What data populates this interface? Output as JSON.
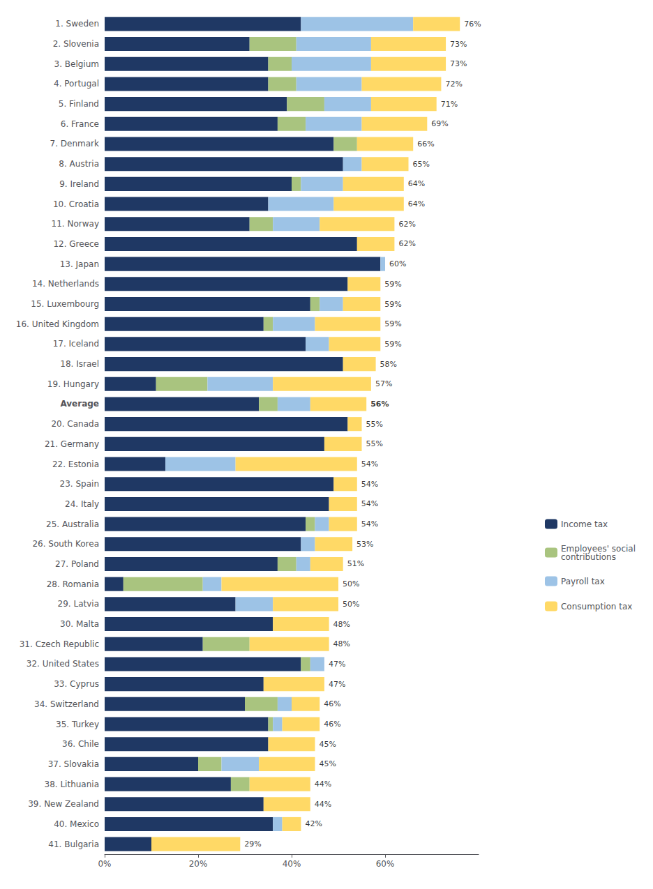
{
  "chart_data": {
    "type": "bar",
    "orientation": "horizontal",
    "stacked": true,
    "categories": [
      "1. Sweden",
      "2. Slovenia",
      "3. Belgium",
      "4. Portugal",
      "5. Finland",
      "6. France",
      "7. Denmark",
      "8. Austria",
      "9. Ireland",
      "10. Croatia",
      "11. Norway",
      "12. Greece",
      "13. Japan",
      "14. Netherlands",
      "15. Luxembourg",
      "16. United Kingdom",
      "17. Iceland",
      "18. Israel",
      "19. Hungary",
      "Average",
      "20. Canada",
      "21. Germany",
      "22. Estonia",
      "23. Spain",
      "24. Italy",
      "25. Australia",
      "26. South Korea",
      "27. Poland",
      "28. Romania",
      "29. Latvia",
      "30. Malta",
      "31. Czech Republic",
      "32. United States",
      "33. Cyprus",
      "34. Switzerland",
      "35. Turkey",
      "36. Chile",
      "37. Slovakia",
      "38. Lithuania",
      "39. New Zealand",
      "40. Mexico",
      "41. Bulgaria"
    ],
    "series": [
      {
        "name": "Income tax",
        "color": "#1f3864",
        "values": [
          42,
          31,
          35,
          35,
          39,
          37,
          49,
          51,
          40,
          35,
          31,
          54,
          59,
          52,
          44,
          34,
          43,
          51,
          11,
          33,
          52,
          47,
          13,
          49,
          48,
          43,
          42,
          37,
          4,
          28,
          36,
          21,
          42,
          34,
          30,
          35,
          35,
          20,
          27,
          34,
          36,
          10
        ]
      },
      {
        "name": "Employees' social\ncontributions",
        "color": "#a9c47f",
        "values": [
          0,
          10,
          5,
          6,
          8,
          6,
          5,
          0,
          2,
          0,
          5,
          0,
          0,
          0,
          2,
          2,
          0,
          0,
          11,
          4,
          0,
          0,
          0,
          0,
          0,
          2,
          0,
          4,
          17,
          0,
          0,
          10,
          2,
          0,
          7,
          1,
          0,
          5,
          4,
          0,
          0,
          0
        ]
      },
      {
        "name": "Payroll tax",
        "color": "#9dc3e6",
        "values": [
          24,
          16,
          17,
          14,
          10,
          12,
          0,
          4,
          9,
          14,
          10,
          0,
          1,
          0,
          5,
          9,
          5,
          0,
          14,
          7,
          0,
          0,
          15,
          0,
          0,
          3,
          3,
          3,
          4,
          8,
          0,
          0,
          3,
          0,
          3,
          2,
          0,
          8,
          0,
          0,
          2,
          0
        ]
      },
      {
        "name": "Consumption tax",
        "color": "#ffd966",
        "values": [
          10,
          16,
          16,
          17,
          14,
          14,
          12,
          10,
          13,
          15,
          16,
          8,
          0,
          7,
          8,
          14,
          11,
          7,
          21,
          12,
          3,
          8,
          26,
          5,
          6,
          6,
          8,
          7,
          25,
          14,
          12,
          17,
          0,
          13,
          6,
          8,
          10,
          12,
          13,
          10,
          4,
          19
        ]
      }
    ],
    "totals": [
      76,
      73,
      73,
      72,
      71,
      69,
      66,
      65,
      64,
      64,
      62,
      62,
      60,
      59,
      59,
      59,
      59,
      58,
      57,
      56,
      55,
      55,
      54,
      54,
      54,
      54,
      53,
      51,
      50,
      50,
      48,
      48,
      47,
      47,
      46,
      46,
      45,
      45,
      44,
      44,
      42,
      29
    ],
    "total_labels": [
      "76%",
      "73%",
      "73%",
      "72%",
      "71%",
      "69%",
      "66%",
      "65%",
      "64%",
      "64%",
      "62%",
      "62%",
      "60%",
      "59%",
      "59%",
      "59%",
      "59%",
      "58%",
      "57%",
      "56%",
      "55%",
      "55%",
      "54%",
      "54%",
      "54%",
      "54%",
      "53%",
      "51%",
      "50%",
      "50%",
      "48%",
      "48%",
      "47%",
      "47%",
      "46%",
      "46%",
      "45%",
      "45%",
      "44%",
      "44%",
      "42%",
      "29%"
    ],
    "xlim": [
      0,
      80
    ],
    "xticks": [
      {
        "value": 0,
        "label": "0%"
      },
      {
        "value": 20,
        "label": "20%"
      },
      {
        "value": 40,
        "label": "40%"
      },
      {
        "value": 60,
        "label": "60%"
      }
    ],
    "grid": false,
    "legend": "right"
  }
}
